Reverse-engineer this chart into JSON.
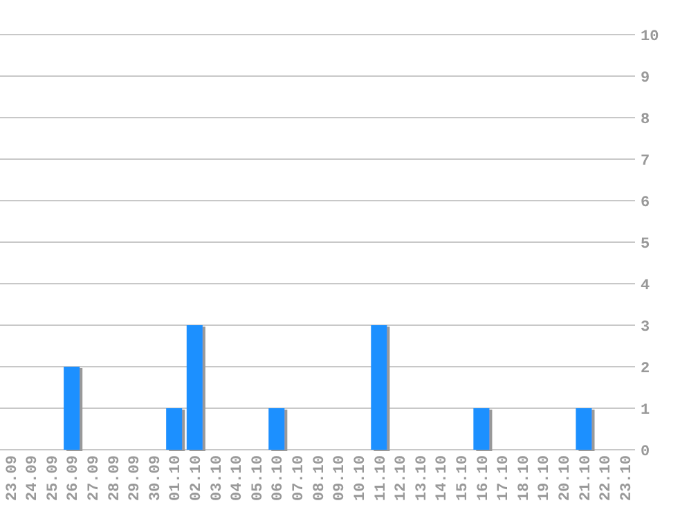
{
  "chart_data": {
    "type": "bar",
    "categories": [
      "23.09",
      "24.09",
      "25.09",
      "26.09",
      "27.09",
      "28.09",
      "29.09",
      "30.09",
      "01.10",
      "02.10",
      "03.10",
      "04.10",
      "05.10",
      "06.10",
      "07.10",
      "08.10",
      "09.10",
      "10.10",
      "11.10",
      "12.10",
      "13.10",
      "14.10",
      "15.10",
      "16.10",
      "17.10",
      "18.10",
      "19.10",
      "20.10",
      "21.10",
      "22.10",
      "23.10"
    ],
    "values": [
      0,
      0,
      0,
      2,
      0,
      0,
      0,
      0,
      1,
      3,
      0,
      0,
      0,
      1,
      0,
      0,
      0,
      0,
      3,
      0,
      0,
      0,
      0,
      1,
      0,
      0,
      0,
      0,
      1,
      0,
      0
    ],
    "color": "#1e90ff",
    "ylim": [
      0,
      10
    ],
    "yticks": [
      0,
      1,
      2,
      3,
      4,
      5,
      6,
      7,
      8,
      9,
      10
    ],
    "grid": true
  }
}
